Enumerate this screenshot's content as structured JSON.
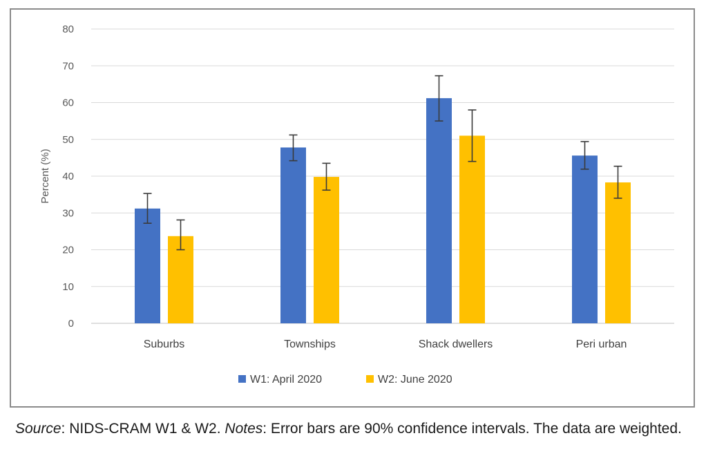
{
  "chart_data": {
    "type": "bar",
    "categories": [
      "Suburbs",
      "Townships",
      "Shack dwellers",
      "Peri urban"
    ],
    "series": [
      {
        "name": "W1: April 2020",
        "color": "#4472C4",
        "values": [
          31.2,
          47.8,
          61.2,
          45.6
        ],
        "error_low": [
          27.2,
          44.2,
          55.0,
          41.9
        ],
        "error_high": [
          35.3,
          51.2,
          67.3,
          49.4
        ]
      },
      {
        "name": "W2: June 2020",
        "color": "#FFC000",
        "values": [
          23.7,
          39.8,
          51.0,
          38.3
        ],
        "error_low": [
          20.0,
          36.2,
          44.0,
          34.0
        ],
        "error_high": [
          28.1,
          43.5,
          58.0,
          42.7
        ]
      }
    ],
    "ylabel": "Percent (%)",
    "xlabel": "",
    "ylim": [
      0,
      80
    ],
    "yticks": [
      0,
      10,
      20,
      30,
      40,
      50,
      60,
      70,
      80
    ],
    "grid": true,
    "legend_position": "bottom"
  },
  "caption": {
    "source_label": "Source",
    "source_text": ": NIDS-CRAM W1 & W2. ",
    "notes_label": "Notes",
    "notes_text": ": Error bars are 90% confidence intervals. The data are weighted."
  }
}
